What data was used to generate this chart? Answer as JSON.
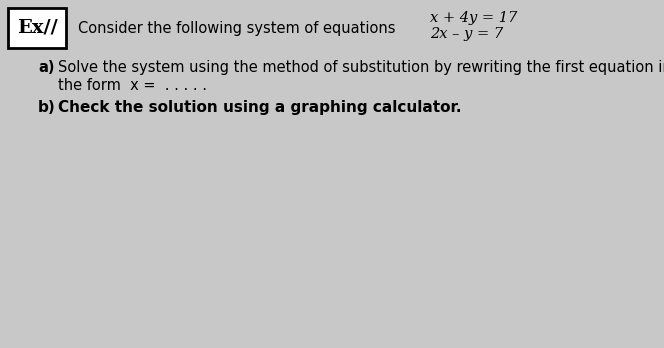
{
  "bg_color": "#c8c8c8",
  "inner_bg_color": "#e0e0e0",
  "box_label": "Ex//",
  "header_text": "Consider the following system of equations",
  "eq1": "x + 4y = 17",
  "eq2": "2x – y = 7",
  "part_a_label": "a)",
  "part_a_line1": "Solve the system using the method of substitution by rewriting the first equation in",
  "part_a_line2": "the form  x =  . . . . .",
  "part_b_label": "b)",
  "part_b_text": "Check the solution using a graphing calculator.",
  "fig_width": 6.64,
  "fig_height": 3.48,
  "dpi": 100,
  "header_fontsize": 10.5,
  "eq_fontsize": 10.5,
  "body_fontsize": 10.5,
  "bold_fontsize": 11.0
}
